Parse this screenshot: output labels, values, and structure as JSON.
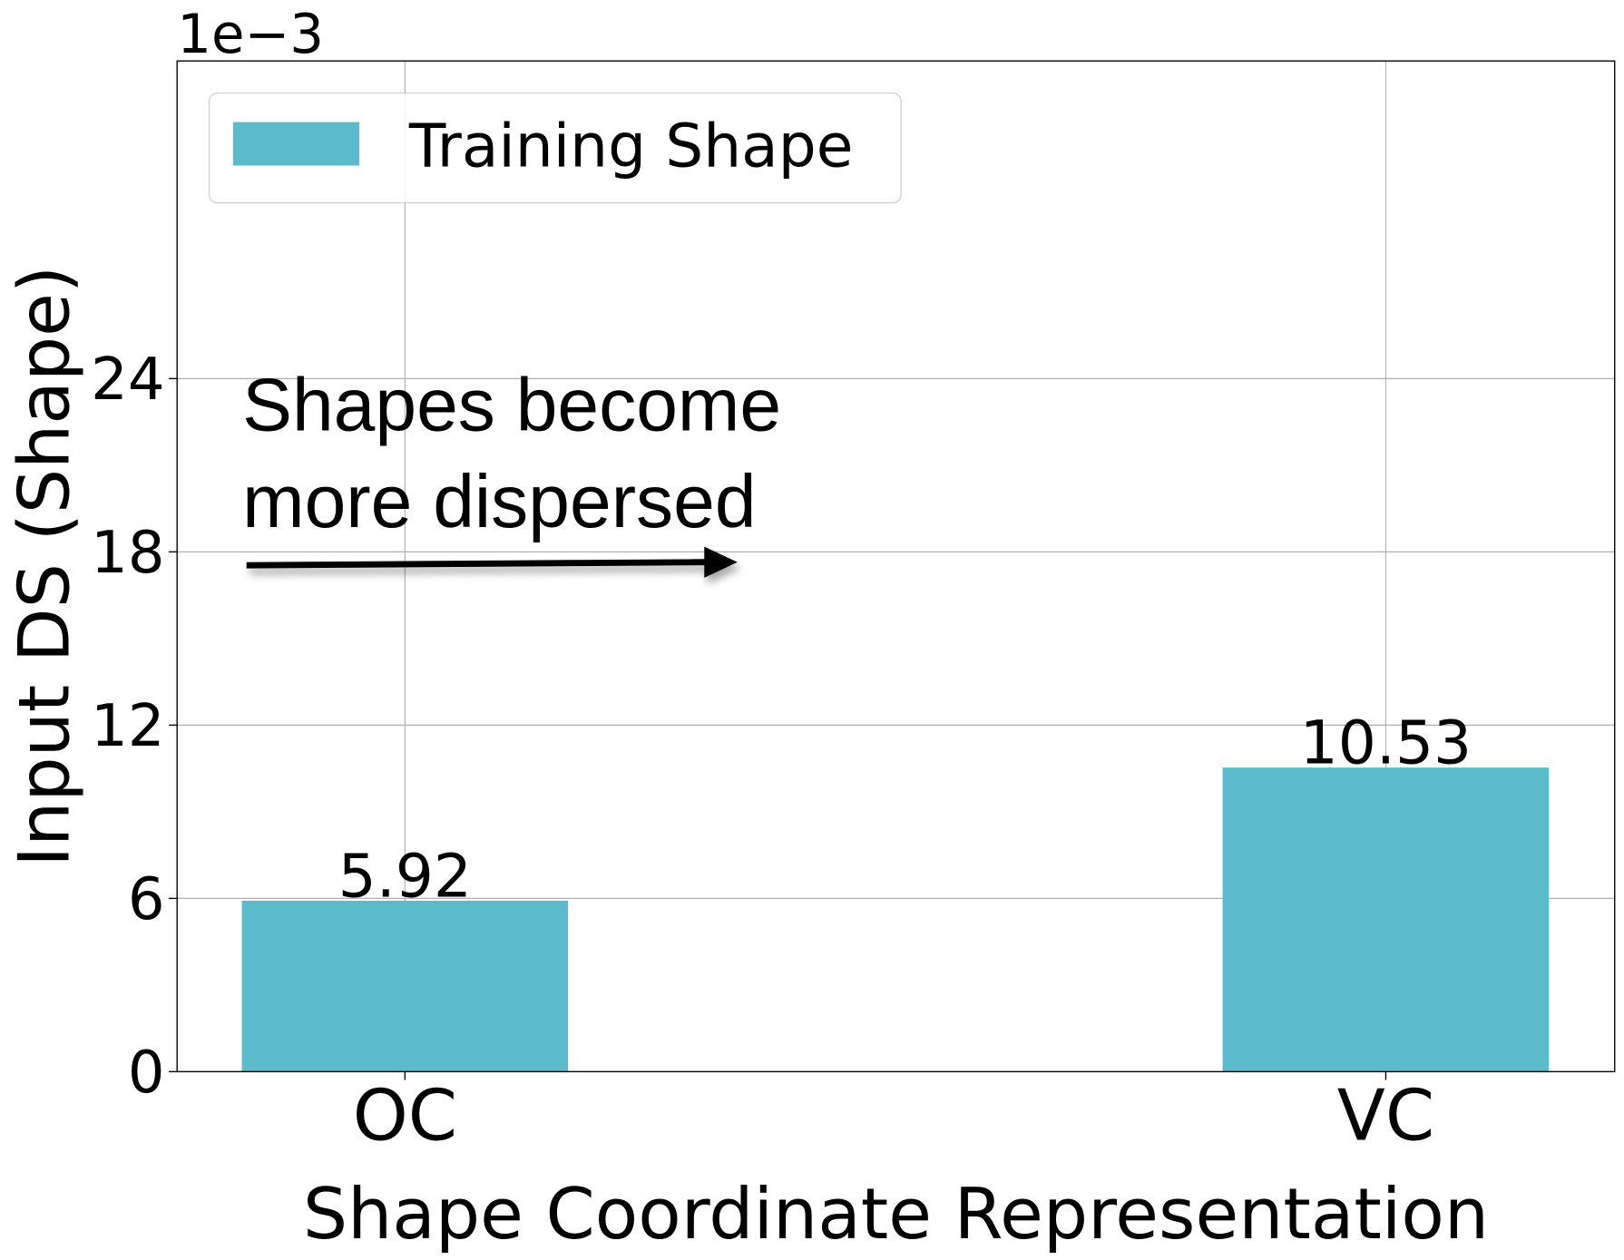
{
  "chart_data": {
    "type": "bar",
    "x_label": "Shape Coordinate Representation",
    "y_label": "Input DS (Shape)",
    "y_offset_label": "1e−3",
    "categories": [
      "OC",
      "VC"
    ],
    "series": [
      {
        "name": "Training Shape",
        "color": "#5bbbcb",
        "values": [
          5.92,
          10.53
        ]
      }
    ],
    "ylim": [
      0,
      35
    ],
    "yticks": [
      0,
      6,
      12,
      18,
      24
    ],
    "grid": true,
    "legend_position": "upper left",
    "annotation": [
      "Shapes become",
      "more dispersed"
    ]
  }
}
